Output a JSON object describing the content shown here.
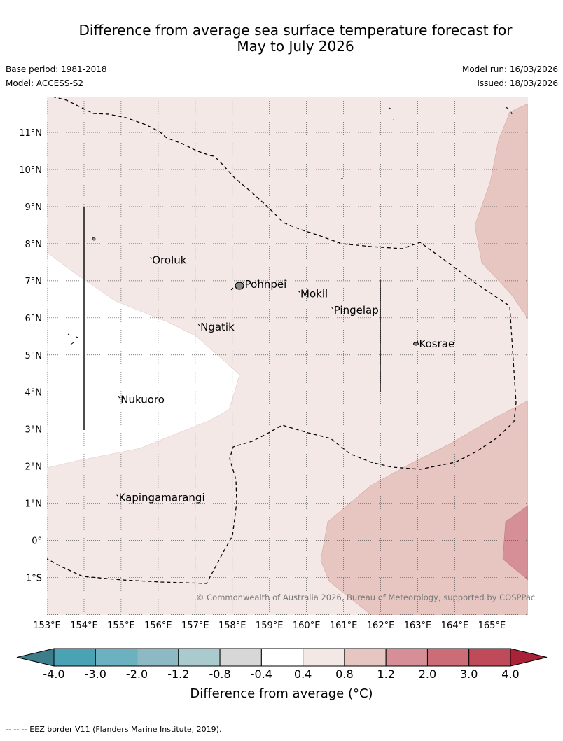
{
  "title": {
    "line1": "Difference from average sea surface temperature forecast for",
    "line2": "May to July 2026"
  },
  "meta": {
    "base_period": "Base period: 1981-2018",
    "model": "Model: ACCESS-S2",
    "model_run": "Model run: 16/03/2026",
    "issued": "Issued: 18/03/2026"
  },
  "map": {
    "lon_range": [
      153,
      166
    ],
    "lat_range": [
      -2,
      12
    ],
    "lon_labels": [
      "153°E",
      "154°E",
      "155°E",
      "156°E",
      "157°E",
      "158°E",
      "159°E",
      "160°E",
      "161°E",
      "162°E",
      "163°E",
      "164°E",
      "165°E"
    ],
    "lat_labels": [
      "1°S",
      "0°",
      "1°N",
      "2°N",
      "3°N",
      "4°N",
      "5°N",
      "6°N",
      "7°N",
      "8°N",
      "9°N",
      "10°N",
      "11°N"
    ],
    "places": [
      {
        "name": "Oroluk",
        "lon": 155.8,
        "lat": 7.55
      },
      {
        "name": "Pohnpei",
        "lon": 158.3,
        "lat": 6.9
      },
      {
        "name": "Mokil",
        "lon": 159.8,
        "lat": 6.65
      },
      {
        "name": "Pingelap",
        "lon": 160.7,
        "lat": 6.2
      },
      {
        "name": "Ngatik",
        "lon": 157.1,
        "lat": 5.75
      },
      {
        "name": "Kosrae",
        "lon": 163.0,
        "lat": 5.3
      },
      {
        "name": "Nukuoro",
        "lon": 154.95,
        "lat": 3.8
      },
      {
        "name": "Kapingamarangi",
        "lon": 154.9,
        "lat": 1.15
      }
    ],
    "copyright": "© Commonwealth of Australia 2026, Bureau of Meteorology, supported by COSPPac"
  },
  "colorbar": {
    "ticks": [
      "-4.0",
      "-3.0",
      "-2.0",
      "-1.2",
      "-0.8",
      "-0.4",
      "0.4",
      "0.8",
      "1.2",
      "2.0",
      "3.0",
      "4.0"
    ],
    "colors": [
      "#4aa3b5",
      "#6cb1c0",
      "#8cb9c4",
      "#aacbce",
      "#d7d7d7",
      "#ffffff",
      "#f4e8e7",
      "#e7c6c2",
      "#d68f96",
      "#cc6c76",
      "#bf4a5a"
    ],
    "under_color": "#3b7d8a",
    "over_color": "#a82238",
    "label": "Difference from average (°C)"
  },
  "footnote": "--  --  -- EEZ border V11 (Flanders Marine Institute, 2019).",
  "colors": {
    "pale_pink": "#f4e8e7",
    "light_pink": "#e7c6c2",
    "mid_pink": "#d68f96",
    "grid": "#555555"
  }
}
